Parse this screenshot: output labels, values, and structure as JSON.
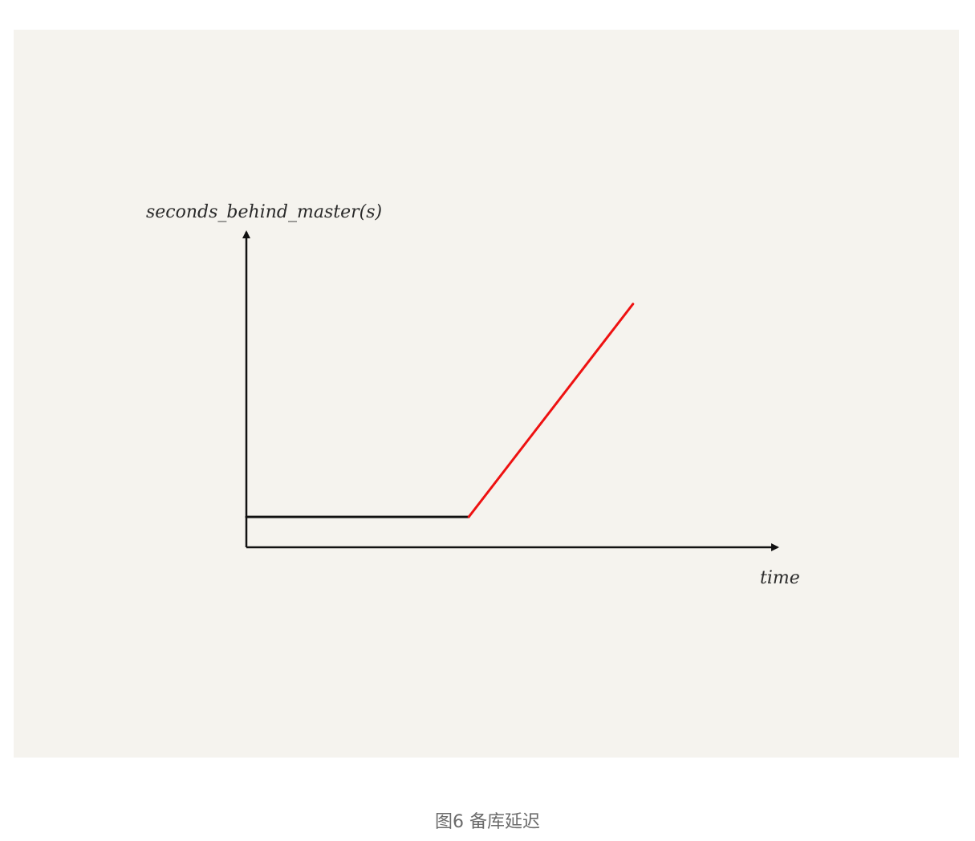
{
  "chart_data": {
    "type": "line",
    "title": "",
    "xlabel": "time",
    "ylabel": "seconds_behind_master(s)",
    "grid": false,
    "legend": "none",
    "xlim": [
      0,
      100
    ],
    "ylim": [
      0,
      100
    ],
    "series": [
      {
        "color": "#111111",
        "points": [
          [
            0,
            10
          ],
          [
            42,
            10
          ]
        ]
      },
      {
        "color": "#ee1111",
        "points": [
          [
            42,
            10
          ],
          [
            73,
            80
          ]
        ]
      }
    ]
  },
  "caption": "图6 备库延迟"
}
